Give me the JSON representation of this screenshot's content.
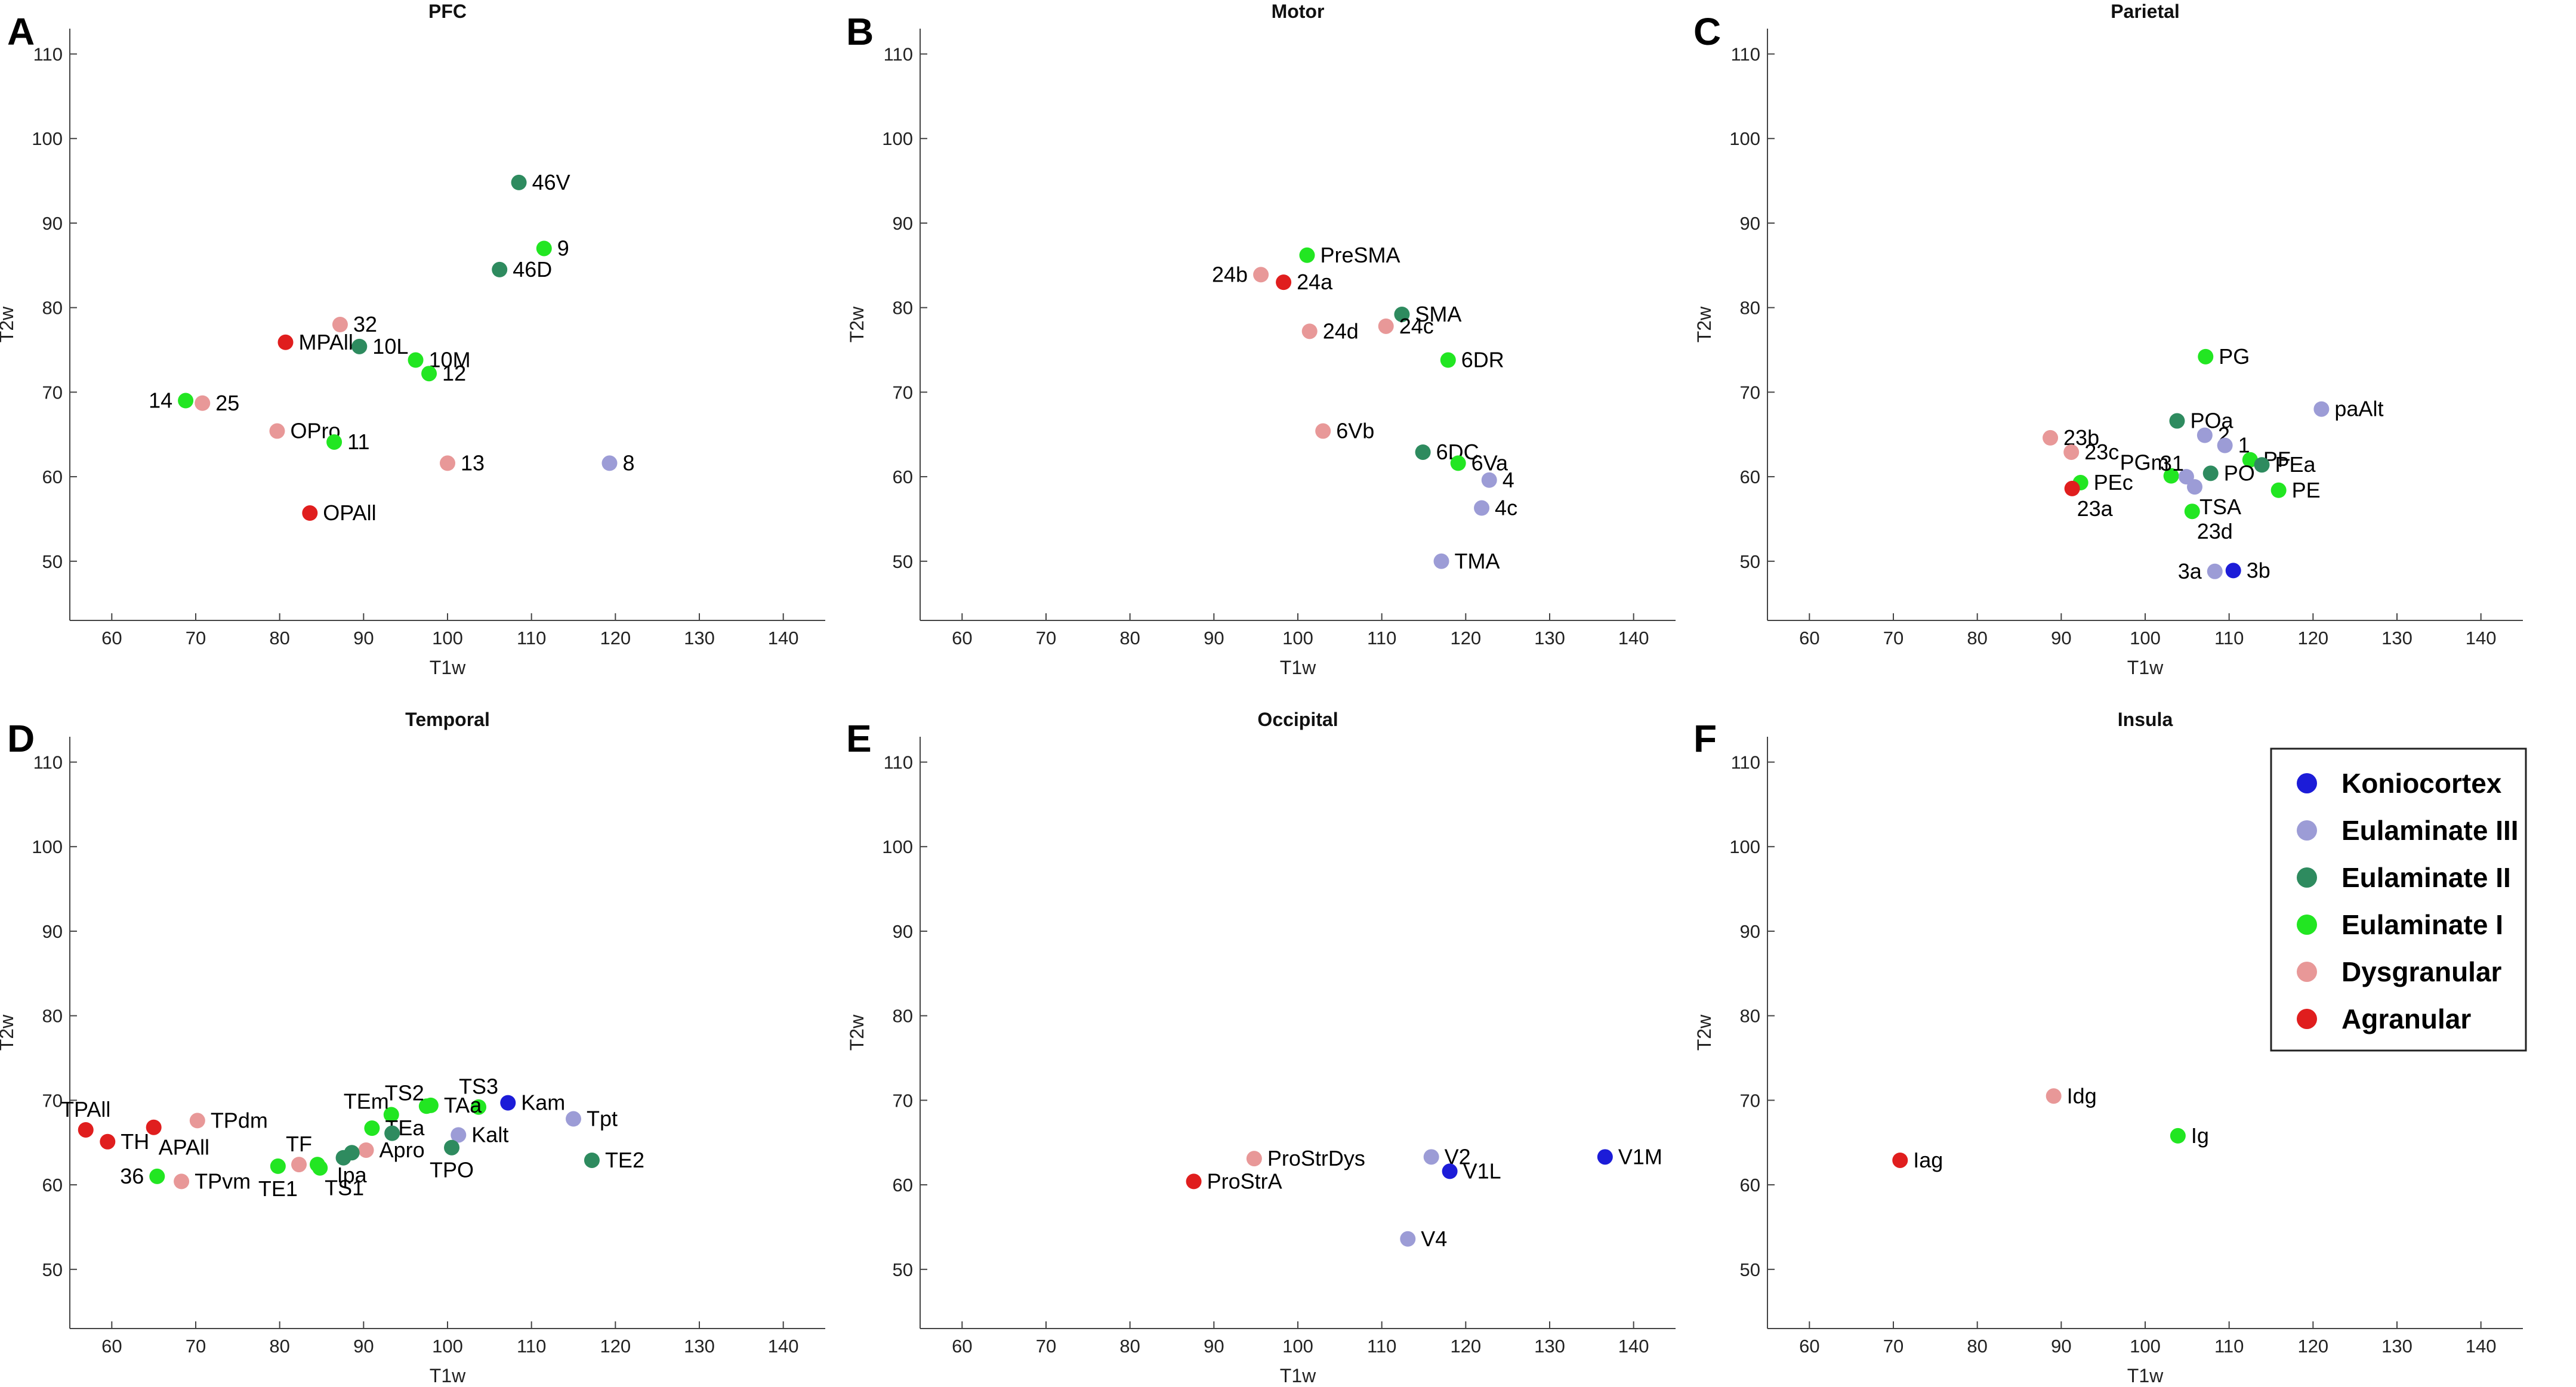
{
  "figure": {
    "categories": [
      {
        "name": "Koniocortex",
        "color": "#1c1cd8"
      },
      {
        "name": "Eulaminate III",
        "color": "#9c9cd6"
      },
      {
        "name": "Eulaminate II",
        "color": "#2e8b5f"
      },
      {
        "name": "Eulaminate I",
        "color": "#22e622"
      },
      {
        "name": "Dysgranular",
        "color": "#e89898"
      },
      {
        "name": "Agranular",
        "color": "#e01e1e"
      }
    ]
  },
  "chart_data": [
    {
      "type": "scatter",
      "letter": "A",
      "title": "PFC",
      "xlabel": "T1w",
      "ylabel": "T2w",
      "xlim": [
        55,
        145
      ],
      "ylim": [
        43,
        113
      ],
      "xticks": [
        60,
        70,
        80,
        90,
        100,
        110,
        120,
        130,
        140
      ],
      "yticks": [
        50,
        60,
        70,
        80,
        90,
        100,
        110
      ],
      "points": [
        {
          "label": "46V",
          "x": 108.5,
          "y": 94.8,
          "cat": 2,
          "side": "r"
        },
        {
          "label": "9",
          "x": 111.5,
          "y": 87.0,
          "cat": 3,
          "side": "r"
        },
        {
          "label": "46D",
          "x": 106.2,
          "y": 84.5,
          "cat": 2,
          "side": "r"
        },
        {
          "label": "32",
          "x": 87.2,
          "y": 78.0,
          "cat": 4,
          "side": "r"
        },
        {
          "label": "MPAll",
          "x": 80.7,
          "y": 75.9,
          "cat": 5,
          "side": "r"
        },
        {
          "label": "10L",
          "x": 89.5,
          "y": 75.4,
          "cat": 2,
          "side": "r"
        },
        {
          "label": "10M",
          "x": 96.2,
          "y": 73.8,
          "cat": 3,
          "side": "r"
        },
        {
          "label": "12",
          "x": 97.8,
          "y": 72.2,
          "cat": 3,
          "side": "r"
        },
        {
          "label": "14",
          "x": 68.8,
          "y": 69.0,
          "cat": 3,
          "side": "l"
        },
        {
          "label": "25",
          "x": 70.8,
          "y": 68.7,
          "cat": 4,
          "side": "r"
        },
        {
          "label": "OPro",
          "x": 79.7,
          "y": 65.4,
          "cat": 4,
          "side": "r"
        },
        {
          "label": "11",
          "x": 86.5,
          "y": 64.1,
          "cat": 3,
          "side": "r"
        },
        {
          "label": "13",
          "x": 100.0,
          "y": 61.6,
          "cat": 4,
          "side": "r"
        },
        {
          "label": "8",
          "x": 119.3,
          "y": 61.6,
          "cat": 1,
          "side": "r"
        },
        {
          "label": "OPAll",
          "x": 83.6,
          "y": 55.7,
          "cat": 5,
          "side": "r"
        }
      ]
    },
    {
      "type": "scatter",
      "letter": "B",
      "title": "Motor",
      "xlabel": "T1w",
      "ylabel": "T2w",
      "xlim": [
        55,
        145
      ],
      "ylim": [
        43,
        113
      ],
      "xticks": [
        60,
        70,
        80,
        90,
        100,
        110,
        120,
        130,
        140
      ],
      "yticks": [
        50,
        60,
        70,
        80,
        90,
        100,
        110
      ],
      "points": [
        {
          "label": "PreSMA",
          "x": 101.1,
          "y": 86.2,
          "cat": 3,
          "side": "r"
        },
        {
          "label": "24b",
          "x": 95.6,
          "y": 83.9,
          "cat": 4,
          "side": "l"
        },
        {
          "label": "24a",
          "x": 98.3,
          "y": 83.0,
          "cat": 5,
          "side": "r"
        },
        {
          "label": "SMA",
          "x": 112.4,
          "y": 79.2,
          "cat": 2,
          "side": "r"
        },
        {
          "label": "24d",
          "x": 101.4,
          "y": 77.2,
          "cat": 4,
          "side": "r"
        },
        {
          "label": "24c",
          "x": 110.5,
          "y": 77.8,
          "cat": 4,
          "side": "r"
        },
        {
          "label": "6DR",
          "x": 117.9,
          "y": 73.8,
          "cat": 3,
          "side": "r"
        },
        {
          "label": "6Vb",
          "x": 103.0,
          "y": 65.4,
          "cat": 4,
          "side": "r"
        },
        {
          "label": "6DC",
          "x": 114.9,
          "y": 62.9,
          "cat": 2,
          "side": "r"
        },
        {
          "label": "6Va",
          "x": 119.1,
          "y": 61.6,
          "cat": 3,
          "side": "r"
        },
        {
          "label": "4",
          "x": 122.8,
          "y": 59.6,
          "cat": 1,
          "side": "r"
        },
        {
          "label": "4c",
          "x": 121.9,
          "y": 56.3,
          "cat": 1,
          "side": "r"
        },
        {
          "label": "TMA",
          "x": 117.1,
          "y": 50.0,
          "cat": 1,
          "side": "r"
        }
      ]
    },
    {
      "type": "scatter",
      "letter": "C",
      "title": "Parietal",
      "xlabel": "T1w",
      "ylabel": "T2w",
      "xlim": [
        55,
        145
      ],
      "ylim": [
        43,
        113
      ],
      "xticks": [
        60,
        70,
        80,
        90,
        100,
        110,
        120,
        130,
        140
      ],
      "yticks": [
        50,
        60,
        70,
        80,
        90,
        100,
        110
      ],
      "points": [
        {
          "label": "PG",
          "x": 107.2,
          "y": 74.2,
          "cat": 3,
          "side": "r"
        },
        {
          "label": "paAlt",
          "x": 121.0,
          "y": 68.0,
          "cat": 1,
          "side": "r"
        },
        {
          "label": "POa",
          "x": 103.8,
          "y": 66.6,
          "cat": 2,
          "side": "r"
        },
        {
          "label": "23b",
          "x": 88.7,
          "y": 64.6,
          "cat": 4,
          "side": "r"
        },
        {
          "label": "2",
          "x": 107.1,
          "y": 64.9,
          "cat": 1,
          "side": "r"
        },
        {
          "label": "1",
          "x": 109.5,
          "y": 63.7,
          "cat": 1,
          "side": "r"
        },
        {
          "label": "PF",
          "x": 112.5,
          "y": 62.0,
          "cat": 3,
          "side": "r"
        },
        {
          "label": "23c",
          "x": 91.2,
          "y": 62.9,
          "cat": 4,
          "side": "r"
        },
        {
          "label": "PEa",
          "x": 113.9,
          "y": 61.4,
          "cat": 2,
          "side": "r"
        },
        {
          "label": "PGm",
          "x": 103.1,
          "y": 60.1,
          "cat": 3,
          "side": "ul"
        },
        {
          "label": "31",
          "x": 104.9,
          "y": 60.0,
          "cat": 1,
          "side": "ul"
        },
        {
          "label": "PO",
          "x": 107.8,
          "y": 60.4,
          "cat": 2,
          "side": "r"
        },
        {
          "label": "PEc",
          "x": 92.3,
          "y": 59.3,
          "cat": 3,
          "side": "r"
        },
        {
          "label": "23a",
          "x": 91.3,
          "y": 58.6,
          "cat": 5,
          "side": "br"
        },
        {
          "label": "TSA",
          "x": 105.9,
          "y": 58.8,
          "cat": 1,
          "side": "br"
        },
        {
          "label": "PE",
          "x": 115.9,
          "y": 58.4,
          "cat": 3,
          "side": "r"
        },
        {
          "label": "23d",
          "x": 105.6,
          "y": 55.9,
          "cat": 3,
          "side": "br"
        },
        {
          "label": "3a",
          "x": 108.3,
          "y": 48.8,
          "cat": 1,
          "side": "l"
        },
        {
          "label": "3b",
          "x": 110.5,
          "y": 48.9,
          "cat": 0,
          "side": "r"
        }
      ]
    },
    {
      "type": "scatter",
      "letter": "D",
      "title": "Temporal",
      "xlabel": "T1w",
      "ylabel": "T2w",
      "xlim": [
        55,
        145
      ],
      "ylim": [
        43,
        113
      ],
      "xticks": [
        60,
        70,
        80,
        90,
        100,
        110,
        120,
        130,
        140
      ],
      "yticks": [
        50,
        60,
        70,
        80,
        90,
        100,
        110
      ],
      "points": [
        {
          "label": "TS3",
          "x": 103.7,
          "y": 69.2,
          "cat": 3,
          "side": "u"
        },
        {
          "label": "Kam",
          "x": 107.2,
          "y": 69.7,
          "cat": 0,
          "side": "r"
        },
        {
          "label": "TS2",
          "x": 97.5,
          "y": 69.3,
          "cat": 3,
          "side": "ul"
        },
        {
          "label": "TAa",
          "x": 98.0,
          "y": 69.4,
          "cat": 3,
          "side": "r"
        },
        {
          "label": "TEm",
          "x": 93.3,
          "y": 68.3,
          "cat": 3,
          "side": "ul"
        },
        {
          "label": "Tpt",
          "x": 115.0,
          "y": 67.8,
          "cat": 1,
          "side": "r"
        },
        {
          "label": "TPAll",
          "x": 56.9,
          "y": 66.5,
          "cat": 5,
          "side": "u"
        },
        {
          "label": "APAll",
          "x": 65.0,
          "y": 66.8,
          "cat": 5,
          "side": "br"
        },
        {
          "label": "TPdm",
          "x": 70.2,
          "y": 67.6,
          "cat": 4,
          "side": "r"
        },
        {
          "label": "TH",
          "x": 59.5,
          "y": 65.1,
          "cat": 5,
          "side": "r"
        },
        {
          "label": "TEa",
          "x": 91.0,
          "y": 66.7,
          "cat": 3,
          "side": "r"
        },
        {
          "label": "",
          "x": 93.4,
          "y": 66.1,
          "cat": 2,
          "side": "r"
        },
        {
          "label": "Kalt",
          "x": 101.3,
          "y": 65.9,
          "cat": 1,
          "side": "r"
        },
        {
          "label": "TPO",
          "x": 100.5,
          "y": 64.4,
          "cat": 2,
          "side": "b"
        },
        {
          "label": "Apro",
          "x": 90.3,
          "y": 64.1,
          "cat": 4,
          "side": "r"
        },
        {
          "label": "TE2",
          "x": 117.2,
          "y": 62.9,
          "cat": 2,
          "side": "r"
        },
        {
          "label": "TF",
          "x": 82.3,
          "y": 62.4,
          "cat": 4,
          "side": "u"
        },
        {
          "label": "Ipa",
          "x": 88.6,
          "y": 63.8,
          "cat": 2,
          "side": "b"
        },
        {
          "label": "",
          "x": 87.6,
          "y": 63.2,
          "cat": 2,
          "side": "r"
        },
        {
          "label": "",
          "x": 84.5,
          "y": 62.4,
          "cat": 3,
          "side": "r"
        },
        {
          "label": "TE1",
          "x": 79.8,
          "y": 62.2,
          "cat": 3,
          "side": "b"
        },
        {
          "label": "TS1",
          "x": 84.8,
          "y": 62.0,
          "cat": 3,
          "side": "br"
        },
        {
          "label": "36",
          "x": 65.4,
          "y": 61.0,
          "cat": 3,
          "side": "l"
        },
        {
          "label": "TPvm",
          "x": 68.3,
          "y": 60.4,
          "cat": 4,
          "side": "r"
        }
      ]
    },
    {
      "type": "scatter",
      "letter": "E",
      "title": "Occipital",
      "xlabel": "T1w",
      "ylabel": "T2w",
      "xlim": [
        55,
        145
      ],
      "ylim": [
        43,
        113
      ],
      "xticks": [
        60,
        70,
        80,
        90,
        100,
        110,
        120,
        130,
        140
      ],
      "yticks": [
        50,
        60,
        70,
        80,
        90,
        100,
        110
      ],
      "points": [
        {
          "label": "ProStrDys",
          "x": 94.8,
          "y": 63.1,
          "cat": 4,
          "side": "r"
        },
        {
          "label": "V2",
          "x": 115.9,
          "y": 63.3,
          "cat": 1,
          "side": "r"
        },
        {
          "label": "V1M",
          "x": 136.6,
          "y": 63.3,
          "cat": 0,
          "side": "r"
        },
        {
          "label": "V1L",
          "x": 118.1,
          "y": 61.6,
          "cat": 0,
          "side": "r"
        },
        {
          "label": "ProStrA",
          "x": 87.6,
          "y": 60.4,
          "cat": 5,
          "side": "r"
        },
        {
          "label": "V4",
          "x": 113.1,
          "y": 53.6,
          "cat": 1,
          "side": "r"
        }
      ]
    },
    {
      "type": "scatter",
      "letter": "F",
      "title": "Insula",
      "xlabel": "T1w",
      "ylabel": "T2w",
      "xlim": [
        55,
        145
      ],
      "ylim": [
        43,
        113
      ],
      "xticks": [
        60,
        70,
        80,
        90,
        100,
        110,
        120,
        130,
        140
      ],
      "yticks": [
        50,
        60,
        70,
        80,
        90,
        100,
        110
      ],
      "points": [
        {
          "label": "Idg",
          "x": 89.1,
          "y": 70.5,
          "cat": 4,
          "side": "r"
        },
        {
          "label": "Ig",
          "x": 103.9,
          "y": 65.8,
          "cat": 3,
          "side": "r"
        },
        {
          "label": "Iag",
          "x": 70.8,
          "y": 62.9,
          "cat": 5,
          "side": "r"
        }
      ]
    }
  ]
}
